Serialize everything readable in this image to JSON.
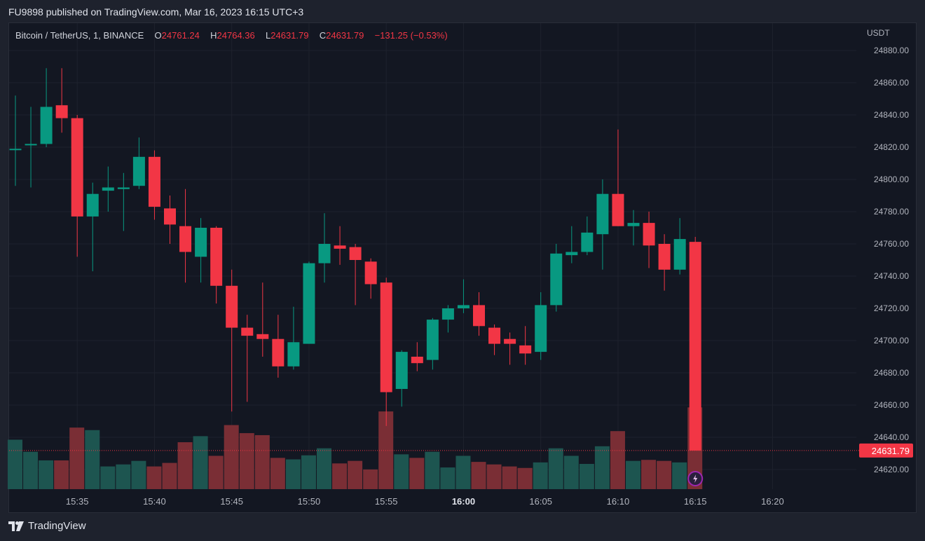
{
  "header": {
    "published_text": "FU9898 published on TradingView.com, Mar 16, 2023 16:15 UTC+3"
  },
  "legend": {
    "symbol": "Bitcoin / TetherUS, 1, BINANCE",
    "o_label": "O",
    "o_value": "24761.24",
    "h_label": "H",
    "h_value": "24764.36",
    "l_label": "L",
    "l_value": "24631.79",
    "c_label": "C",
    "c_value": "24631.79",
    "change": "−131.25 (−0.53%)"
  },
  "footer": {
    "brand": "TradingView"
  },
  "colors": {
    "up": "#089981",
    "down": "#f23645",
    "vol_up": "#1d5550",
    "vol_down": "#7a2e35",
    "grid": "#1e222d",
    "text": "#b2b5be",
    "bg": "#131722"
  },
  "chart_data": {
    "type": "candlestick",
    "title": "Bitcoin / TetherUS, 1, BINANCE",
    "y_axis_label": "USDT",
    "y_ticks": [
      "24880.00",
      "24860.00",
      "24840.00",
      "24820.00",
      "24800.00",
      "24780.00",
      "24760.00",
      "24740.00",
      "24720.00",
      "24700.00",
      "24680.00",
      "24660.00",
      "24640.00",
      "24620.00"
    ],
    "ylim": [
      24610,
      24890
    ],
    "x_ticks": [
      "15:35",
      "15:40",
      "15:45",
      "15:50",
      "15:55",
      "16:00",
      "16:05",
      "16:10",
      "16:15",
      "16:20"
    ],
    "last_price": "24631.79",
    "candles": [
      {
        "t": "15:31",
        "o": 24819,
        "h": 24852,
        "l": 24796,
        "c": 24819
      },
      {
        "t": "15:32",
        "o": 24822,
        "h": 24845,
        "l": 24795,
        "c": 24822
      },
      {
        "t": "15:33",
        "o": 24822,
        "h": 24869,
        "l": 24820,
        "c": 24845
      },
      {
        "t": "15:34",
        "o": 24846,
        "h": 24869,
        "l": 24829,
        "c": 24838
      },
      {
        "t": "15:35",
        "o": 24838,
        "h": 24840,
        "l": 24752,
        "c": 24777
      },
      {
        "t": "15:36",
        "o": 24777,
        "h": 24798,
        "l": 24743,
        "c": 24791
      },
      {
        "t": "15:37",
        "o": 24793,
        "h": 24808,
        "l": 24780,
        "c": 24795
      },
      {
        "t": "15:38",
        "o": 24794,
        "h": 24804,
        "l": 24768,
        "c": 24795
      },
      {
        "t": "15:39",
        "o": 24796,
        "h": 24826,
        "l": 24794,
        "c": 24814
      },
      {
        "t": "15:40",
        "o": 24814,
        "h": 24818,
        "l": 24775,
        "c": 24783
      },
      {
        "t": "15:41",
        "o": 24782,
        "h": 24790,
        "l": 24760,
        "c": 24772
      },
      {
        "t": "15:42",
        "o": 24771,
        "h": 24794,
        "l": 24736,
        "c": 24755
      },
      {
        "t": "15:43",
        "o": 24752,
        "h": 24776,
        "l": 24736,
        "c": 24770
      },
      {
        "t": "15:44",
        "o": 24770,
        "h": 24771,
        "l": 24723,
        "c": 24734
      },
      {
        "t": "15:45",
        "o": 24734,
        "h": 24744,
        "l": 24656,
        "c": 24708
      },
      {
        "t": "15:46",
        "o": 24708,
        "h": 24716,
        "l": 24662,
        "c": 24703
      },
      {
        "t": "15:47",
        "o": 24704,
        "h": 24736,
        "l": 24690,
        "c": 24701
      },
      {
        "t": "15:48",
        "o": 24701,
        "h": 24716,
        "l": 24677,
        "c": 24684
      },
      {
        "t": "15:49",
        "o": 24684,
        "h": 24721,
        "l": 24682,
        "c": 24699
      },
      {
        "t": "15:50",
        "o": 24698,
        "h": 24749,
        "l": 24698,
        "c": 24748
      },
      {
        "t": "15:51",
        "o": 24748,
        "h": 24779,
        "l": 24736,
        "c": 24760
      },
      {
        "t": "15:52",
        "o": 24759,
        "h": 24771,
        "l": 24747,
        "c": 24757
      },
      {
        "t": "15:53",
        "o": 24758,
        "h": 24760,
        "l": 24722,
        "c": 24750
      },
      {
        "t": "15:54",
        "o": 24749,
        "h": 24751,
        "l": 24726,
        "c": 24735
      },
      {
        "t": "15:55",
        "o": 24736,
        "h": 24739,
        "l": 24647,
        "c": 24668
      },
      {
        "t": "15:56",
        "o": 24670,
        "h": 24694,
        "l": 24659,
        "c": 24693
      },
      {
        "t": "15:57",
        "o": 24690,
        "h": 24699,
        "l": 24681,
        "c": 24686
      },
      {
        "t": "15:58",
        "o": 24688,
        "h": 24714,
        "l": 24682,
        "c": 24713
      },
      {
        "t": "15:59",
        "o": 24713,
        "h": 24722,
        "l": 24705,
        "c": 24720
      },
      {
        "t": "16:00",
        "o": 24720,
        "h": 24738,
        "l": 24717,
        "c": 24722
      },
      {
        "t": "16:01",
        "o": 24722,
        "h": 24730,
        "l": 24703,
        "c": 24709
      },
      {
        "t": "16:02",
        "o": 24708,
        "h": 24710,
        "l": 24691,
        "c": 24698
      },
      {
        "t": "16:03",
        "o": 24701,
        "h": 24705,
        "l": 24685,
        "c": 24698
      },
      {
        "t": "16:04",
        "o": 24697,
        "h": 24709,
        "l": 24685,
        "c": 24692
      },
      {
        "t": "16:05",
        "o": 24693,
        "h": 24730,
        "l": 24688,
        "c": 24722
      },
      {
        "t": "16:06",
        "o": 24722,
        "h": 24760,
        "l": 24718,
        "c": 24754
      },
      {
        "t": "16:07",
        "o": 24753,
        "h": 24771,
        "l": 24748,
        "c": 24755
      },
      {
        "t": "16:08",
        "o": 24755,
        "h": 24777,
        "l": 24753,
        "c": 24767
      },
      {
        "t": "16:09",
        "o": 24766,
        "h": 24800,
        "l": 24744,
        "c": 24791
      },
      {
        "t": "16:10",
        "o": 24791,
        "h": 24831,
        "l": 24771,
        "c": 24771
      },
      {
        "t": "16:11",
        "o": 24771,
        "h": 24781,
        "l": 24759,
        "c": 24773
      },
      {
        "t": "16:12",
        "o": 24773,
        "h": 24780,
        "l": 24745,
        "c": 24759
      },
      {
        "t": "16:13",
        "o": 24760,
        "h": 24766,
        "l": 24731,
        "c": 24744
      },
      {
        "t": "16:14",
        "o": 24744,
        "h": 24776,
        "l": 24741,
        "c": 24763
      },
      {
        "t": "16:15",
        "o": 24761.24,
        "h": 24764.36,
        "l": 24631.79,
        "c": 24631.79
      }
    ],
    "volume": {
      "unit": "relative",
      "values": [
        0.98,
        0.74,
        0.57,
        0.57,
        1.22,
        1.17,
        0.45,
        0.49,
        0.56,
        0.45,
        0.52,
        0.93,
        1.05,
        0.66,
        1.27,
        1.11,
        1.07,
        0.62,
        0.59,
        0.67,
        0.81,
        0.51,
        0.56,
        0.39,
        1.54,
        0.69,
        0.62,
        0.74,
        0.43,
        0.66,
        0.54,
        0.49,
        0.45,
        0.42,
        0.53,
        0.81,
        0.66,
        0.5,
        0.85,
        1.15,
        0.56,
        0.58,
        0.56,
        0.53,
        1.62
      ]
    }
  }
}
